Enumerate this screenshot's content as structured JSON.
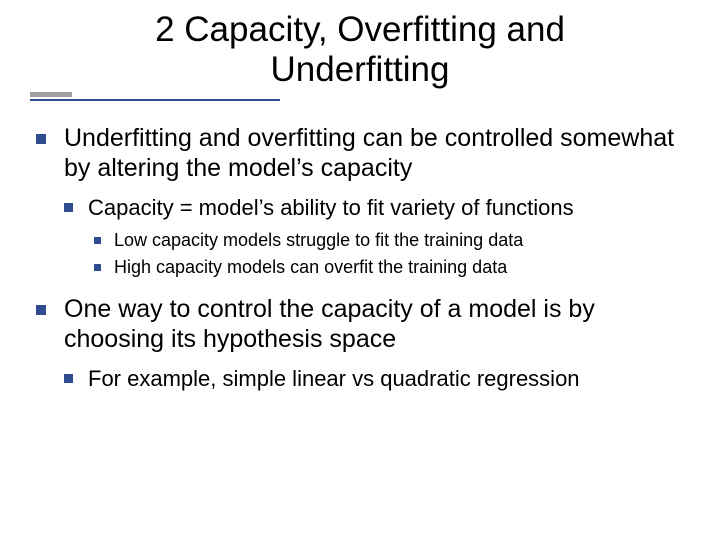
{
  "colors": {
    "bullet": "#304c90",
    "underline_long": "#2f4d8f",
    "underline_short": "#a0a0a0",
    "text": "#000000",
    "background": "#ffffff"
  },
  "title": "2 Capacity, Overfitting and Underfitting",
  "bullets": [
    {
      "text": "Underfitting and overfitting can be controlled somewhat by altering the model’s capacity",
      "children": [
        {
          "text": "Capacity = model’s ability to fit variety of functions",
          "children": [
            {
              "text": "Low capacity models struggle to fit the training data"
            },
            {
              "text": "High capacity models can overfit the training data"
            }
          ]
        }
      ]
    },
    {
      "text": "One way to control the capacity of a model is by choosing its hypothesis space",
      "children": [
        {
          "text": "For example, simple linear vs quadratic regression"
        }
      ]
    }
  ]
}
